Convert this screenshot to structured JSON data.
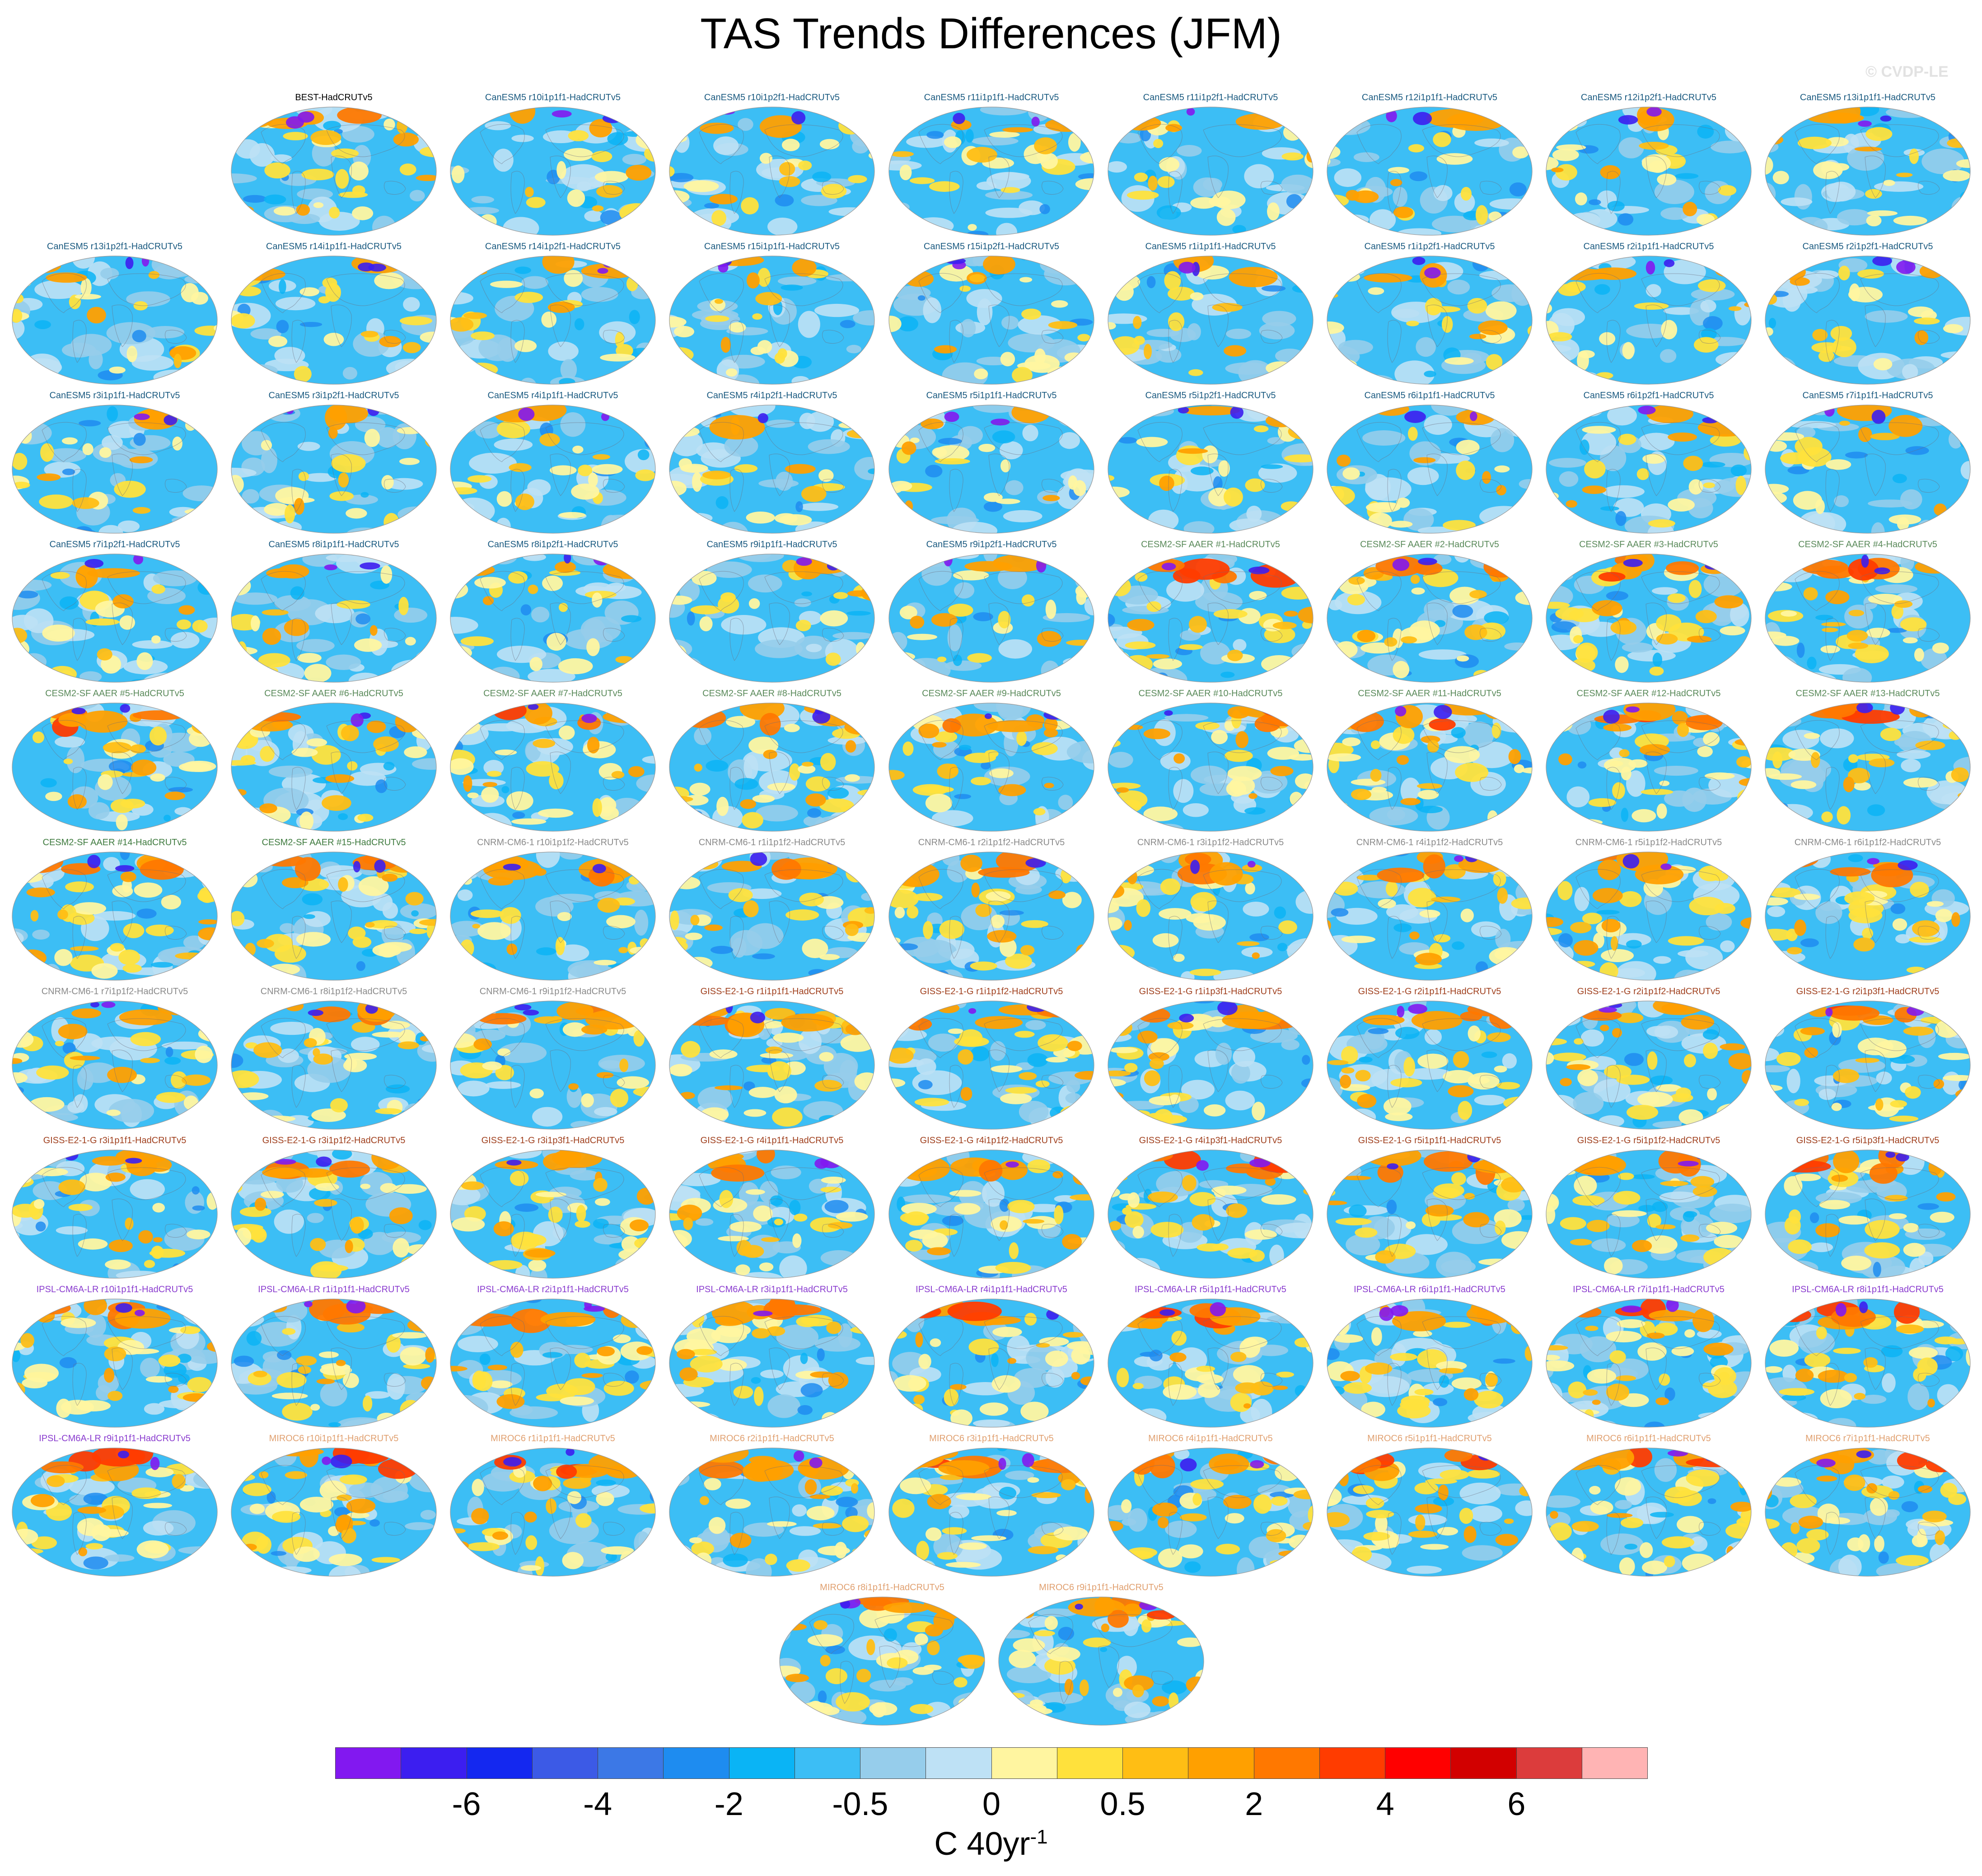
{
  "title": "TAS Trends Differences (JFM)",
  "copyright": "© CVDP-LE",
  "chart_data": {
    "type": "heatmap",
    "title": "TAS Trends Differences (JFM)",
    "description_map_type": "global surface air temperature trend difference maps (model member minus HadCRUTv5)",
    "units_prefix": "C 40yr",
    "units_exponent": "-1",
    "colorbar": {
      "levels": [
        "-6",
        "-4",
        "-2",
        "-0.5",
        "0",
        "0.5",
        "2",
        "4",
        "6"
      ],
      "colors": [
        "#8218f0",
        "#3c1ef0",
        "#1428f0",
        "#3c5ae6",
        "#3c78e6",
        "#1e8cf0",
        "#0ab4f5",
        "#3cbef5",
        "#96cdeb",
        "#bee1f5",
        "#fff5a0",
        "#ffe13c",
        "#ffbe14",
        "#ffa000",
        "#ff7800",
        "#ff3c00",
        "#ff0000",
        "#d20000",
        "#dc3c3c",
        "#ffb4b4"
      ]
    },
    "panels": [
      {
        "label": "BEST-HadCRUTv5",
        "color": "#000000"
      },
      {
        "label": "CanESM5 r10i1p1f1-HadCRUTv5",
        "color": "#1a5a80"
      },
      {
        "label": "CanESM5 r10i1p2f1-HadCRUTv5",
        "color": "#1a5a80"
      },
      {
        "label": "CanESM5 r11i1p1f1-HadCRUTv5",
        "color": "#1a5a80"
      },
      {
        "label": "CanESM5 r11i1p2f1-HadCRUTv5",
        "color": "#1a5a80"
      },
      {
        "label": "CanESM5 r12i1p1f1-HadCRUTv5",
        "color": "#1a5a80"
      },
      {
        "label": "CanESM5 r12i1p2f1-HadCRUTv5",
        "color": "#1a5a80"
      },
      {
        "label": "CanESM5 r13i1p1f1-HadCRUTv5",
        "color": "#1a5a80"
      },
      {
        "label": "CanESM5 r13i1p2f1-HadCRUTv5",
        "color": "#1a5a80"
      },
      {
        "label": "CanESM5 r14i1p1f1-HadCRUTv5",
        "color": "#1a5a80"
      },
      {
        "label": "CanESM5 r14i1p2f1-HadCRUTv5",
        "color": "#1a5a80"
      },
      {
        "label": "CanESM5 r15i1p1f1-HadCRUTv5",
        "color": "#1a5a80"
      },
      {
        "label": "CanESM5 r15i1p2f1-HadCRUTv5",
        "color": "#1a5a80"
      },
      {
        "label": "CanESM5 r1i1p1f1-HadCRUTv5",
        "color": "#1a5a80"
      },
      {
        "label": "CanESM5 r1i1p2f1-HadCRUTv5",
        "color": "#1a5a80"
      },
      {
        "label": "CanESM5 r2i1p1f1-HadCRUTv5",
        "color": "#1a5a80"
      },
      {
        "label": "CanESM5 r2i1p2f1-HadCRUTv5",
        "color": "#1a5a80"
      },
      {
        "label": "CanESM5 r3i1p1f1-HadCRUTv5",
        "color": "#1a5a80"
      },
      {
        "label": "CanESM5 r3i1p2f1-HadCRUTv5",
        "color": "#1a5a80"
      },
      {
        "label": "CanESM5 r4i1p1f1-HadCRUTv5",
        "color": "#1a5a80"
      },
      {
        "label": "CanESM5 r4i1p2f1-HadCRUTv5",
        "color": "#1a5a80"
      },
      {
        "label": "CanESM5 r5i1p1f1-HadCRUTv5",
        "color": "#1a5a80"
      },
      {
        "label": "CanESM5 r5i1p2f1-HadCRUTv5",
        "color": "#1a5a80"
      },
      {
        "label": "CanESM5 r6i1p1f1-HadCRUTv5",
        "color": "#1a5a80"
      },
      {
        "label": "CanESM5 r6i1p2f1-HadCRUTv5",
        "color": "#1a5a80"
      },
      {
        "label": "CanESM5 r7i1p1f1-HadCRUTv5",
        "color": "#1a5a80"
      },
      {
        "label": "CanESM5 r7i1p2f1-HadCRUTv5",
        "color": "#1a5a80"
      },
      {
        "label": "CanESM5 r8i1p1f1-HadCRUTv5",
        "color": "#1a5a80"
      },
      {
        "label": "CanESM5 r8i1p2f1-HadCRUTv5",
        "color": "#1a5a80"
      },
      {
        "label": "CanESM5 r9i1p1f1-HadCRUTv5",
        "color": "#1a5a80"
      },
      {
        "label": "CanESM5 r9i1p2f1-HadCRUTv5",
        "color": "#1a5a80"
      },
      {
        "label": "CESM2-SF AAER #1-HadCRUTv5",
        "color": "#5a8a5a"
      },
      {
        "label": "CESM2-SF AAER #2-HadCRUTv5",
        "color": "#5a8a5a"
      },
      {
        "label": "CESM2-SF AAER #3-HadCRUTv5",
        "color": "#5a8a5a"
      },
      {
        "label": "CESM2-SF AAER #4-HadCRUTv5",
        "color": "#5a8a5a"
      },
      {
        "label": "CESM2-SF AAER #5-HadCRUTv5",
        "color": "#5a8a5a"
      },
      {
        "label": "CESM2-SF AAER #6-HadCRUTv5",
        "color": "#5a8a5a"
      },
      {
        "label": "CESM2-SF AAER #7-HadCRUTv5",
        "color": "#5a8a5a"
      },
      {
        "label": "CESM2-SF AAER #8-HadCRUTv5",
        "color": "#5a8a5a"
      },
      {
        "label": "CESM2-SF AAER #9-HadCRUTv5",
        "color": "#5a8a5a"
      },
      {
        "label": "CESM2-SF AAER #10-HadCRUTv5",
        "color": "#5a8a5a"
      },
      {
        "label": "CESM2-SF AAER #11-HadCRUTv5",
        "color": "#5a8a5a"
      },
      {
        "label": "CESM2-SF AAER #12-HadCRUTv5",
        "color": "#5a8a5a"
      },
      {
        "label": "CESM2-SF AAER #13-HadCRUTv5",
        "color": "#5a8a5a"
      },
      {
        "label": "CESM2-SF AAER #14-HadCRUTv5",
        "color": "#3e7a3e"
      },
      {
        "label": "CESM2-SF AAER #15-HadCRUTv5",
        "color": "#3e7a3e"
      },
      {
        "label": "CNRM-CM6-1 r10i1p1f2-HadCRUTv5",
        "color": "#8a8a8a"
      },
      {
        "label": "CNRM-CM6-1 r1i1p1f2-HadCRUTv5",
        "color": "#8a8a8a"
      },
      {
        "label": "CNRM-CM6-1 r2i1p1f2-HadCRUTv5",
        "color": "#8a8a8a"
      },
      {
        "label": "CNRM-CM6-1 r3i1p1f2-HadCRUTv5",
        "color": "#8a8a8a"
      },
      {
        "label": "CNRM-CM6-1 r4i1p1f2-HadCRUTv5",
        "color": "#8a8a8a"
      },
      {
        "label": "CNRM-CM6-1 r5i1p1f2-HadCRUTv5",
        "color": "#8a8a8a"
      },
      {
        "label": "CNRM-CM6-1 r6i1p1f2-HadCRUTv5",
        "color": "#8a8a8a"
      },
      {
        "label": "CNRM-CM6-1 r7i1p1f2-HadCRUTv5",
        "color": "#8a8a8a"
      },
      {
        "label": "CNRM-CM6-1 r8i1p1f2-HadCRUTv5",
        "color": "#8a8a8a"
      },
      {
        "label": "CNRM-CM6-1 r9i1p1f2-HadCRUTv5",
        "color": "#8a8a8a"
      },
      {
        "label": "GISS-E2-1-G r1i1p1f1-HadCRUTv5",
        "color": "#a0401e"
      },
      {
        "label": "GISS-E2-1-G r1i1p1f2-HadCRUTv5",
        "color": "#a0401e"
      },
      {
        "label": "GISS-E2-1-G r1i1p3f1-HadCRUTv5",
        "color": "#a0401e"
      },
      {
        "label": "GISS-E2-1-G r2i1p1f1-HadCRUTv5",
        "color": "#a0401e"
      },
      {
        "label": "GISS-E2-1-G r2i1p1f2-HadCRUTv5",
        "color": "#a0401e"
      },
      {
        "label": "GISS-E2-1-G r2i1p3f1-HadCRUTv5",
        "color": "#a0401e"
      },
      {
        "label": "GISS-E2-1-G r3i1p1f1-HadCRUTv5",
        "color": "#a0401e"
      },
      {
        "label": "GISS-E2-1-G r3i1p1f2-HadCRUTv5",
        "color": "#a0401e"
      },
      {
        "label": "GISS-E2-1-G r3i1p3f1-HadCRUTv5",
        "color": "#a0401e"
      },
      {
        "label": "GISS-E2-1-G r4i1p1f1-HadCRUTv5",
        "color": "#a0401e"
      },
      {
        "label": "GISS-E2-1-G r4i1p1f2-HadCRUTv5",
        "color": "#a0401e"
      },
      {
        "label": "GISS-E2-1-G r4i1p3f1-HadCRUTv5",
        "color": "#a0401e"
      },
      {
        "label": "GISS-E2-1-G r5i1p1f1-HadCRUTv5",
        "color": "#a0401e"
      },
      {
        "label": "GISS-E2-1-G r5i1p1f2-HadCRUTv5",
        "color": "#a0401e"
      },
      {
        "label": "GISS-E2-1-G r5i1p3f1-HadCRUTv5",
        "color": "#a0401e"
      },
      {
        "label": "IPSL-CM6A-LR r10i1p1f1-HadCRUTv5",
        "color": "#8a3ccf"
      },
      {
        "label": "IPSL-CM6A-LR r1i1p1f1-HadCRUTv5",
        "color": "#8a3ccf"
      },
      {
        "label": "IPSL-CM6A-LR r2i1p1f1-HadCRUTv5",
        "color": "#8a3ccf"
      },
      {
        "label": "IPSL-CM6A-LR r3i1p1f1-HadCRUTv5",
        "color": "#8a3ccf"
      },
      {
        "label": "IPSL-CM6A-LR r4i1p1f1-HadCRUTv5",
        "color": "#8a3ccf"
      },
      {
        "label": "IPSL-CM6A-LR r5i1p1f1-HadCRUTv5",
        "color": "#8a3ccf"
      },
      {
        "label": "IPSL-CM6A-LR r6i1p1f1-HadCRUTv5",
        "color": "#8a3ccf"
      },
      {
        "label": "IPSL-CM6A-LR r7i1p1f1-HadCRUTv5",
        "color": "#8a3ccf"
      },
      {
        "label": "IPSL-CM6A-LR r8i1p1f1-HadCRUTv5",
        "color": "#8a3ccf"
      },
      {
        "label": "IPSL-CM6A-LR r9i1p1f1-HadCRUTv5",
        "color": "#8a3ccf"
      },
      {
        "label": "MIROC6 r10i1p1f1-HadCRUTv5",
        "color": "#e0a070"
      },
      {
        "label": "MIROC6 r1i1p1f1-HadCRUTv5",
        "color": "#e0a070"
      },
      {
        "label": "MIROC6 r2i1p1f1-HadCRUTv5",
        "color": "#e0a070"
      },
      {
        "label": "MIROC6 r3i1p1f1-HadCRUTv5",
        "color": "#e0a070"
      },
      {
        "label": "MIROC6 r4i1p1f1-HadCRUTv5",
        "color": "#e0a070"
      },
      {
        "label": "MIROC6 r5i1p1f1-HadCRUTv5",
        "color": "#e0a070"
      },
      {
        "label": "MIROC6 r6i1p1f1-HadCRUTv5",
        "color": "#e0a070"
      },
      {
        "label": "MIROC6 r7i1p1f1-HadCRUTv5",
        "color": "#e0a070"
      },
      {
        "label": "MIROC6 r8i1p1f1-HadCRUTv5",
        "color": "#e0a070"
      },
      {
        "label": "MIROC6 r9i1p1f1-HadCRUTv5",
        "color": "#e0a070"
      }
    ]
  }
}
